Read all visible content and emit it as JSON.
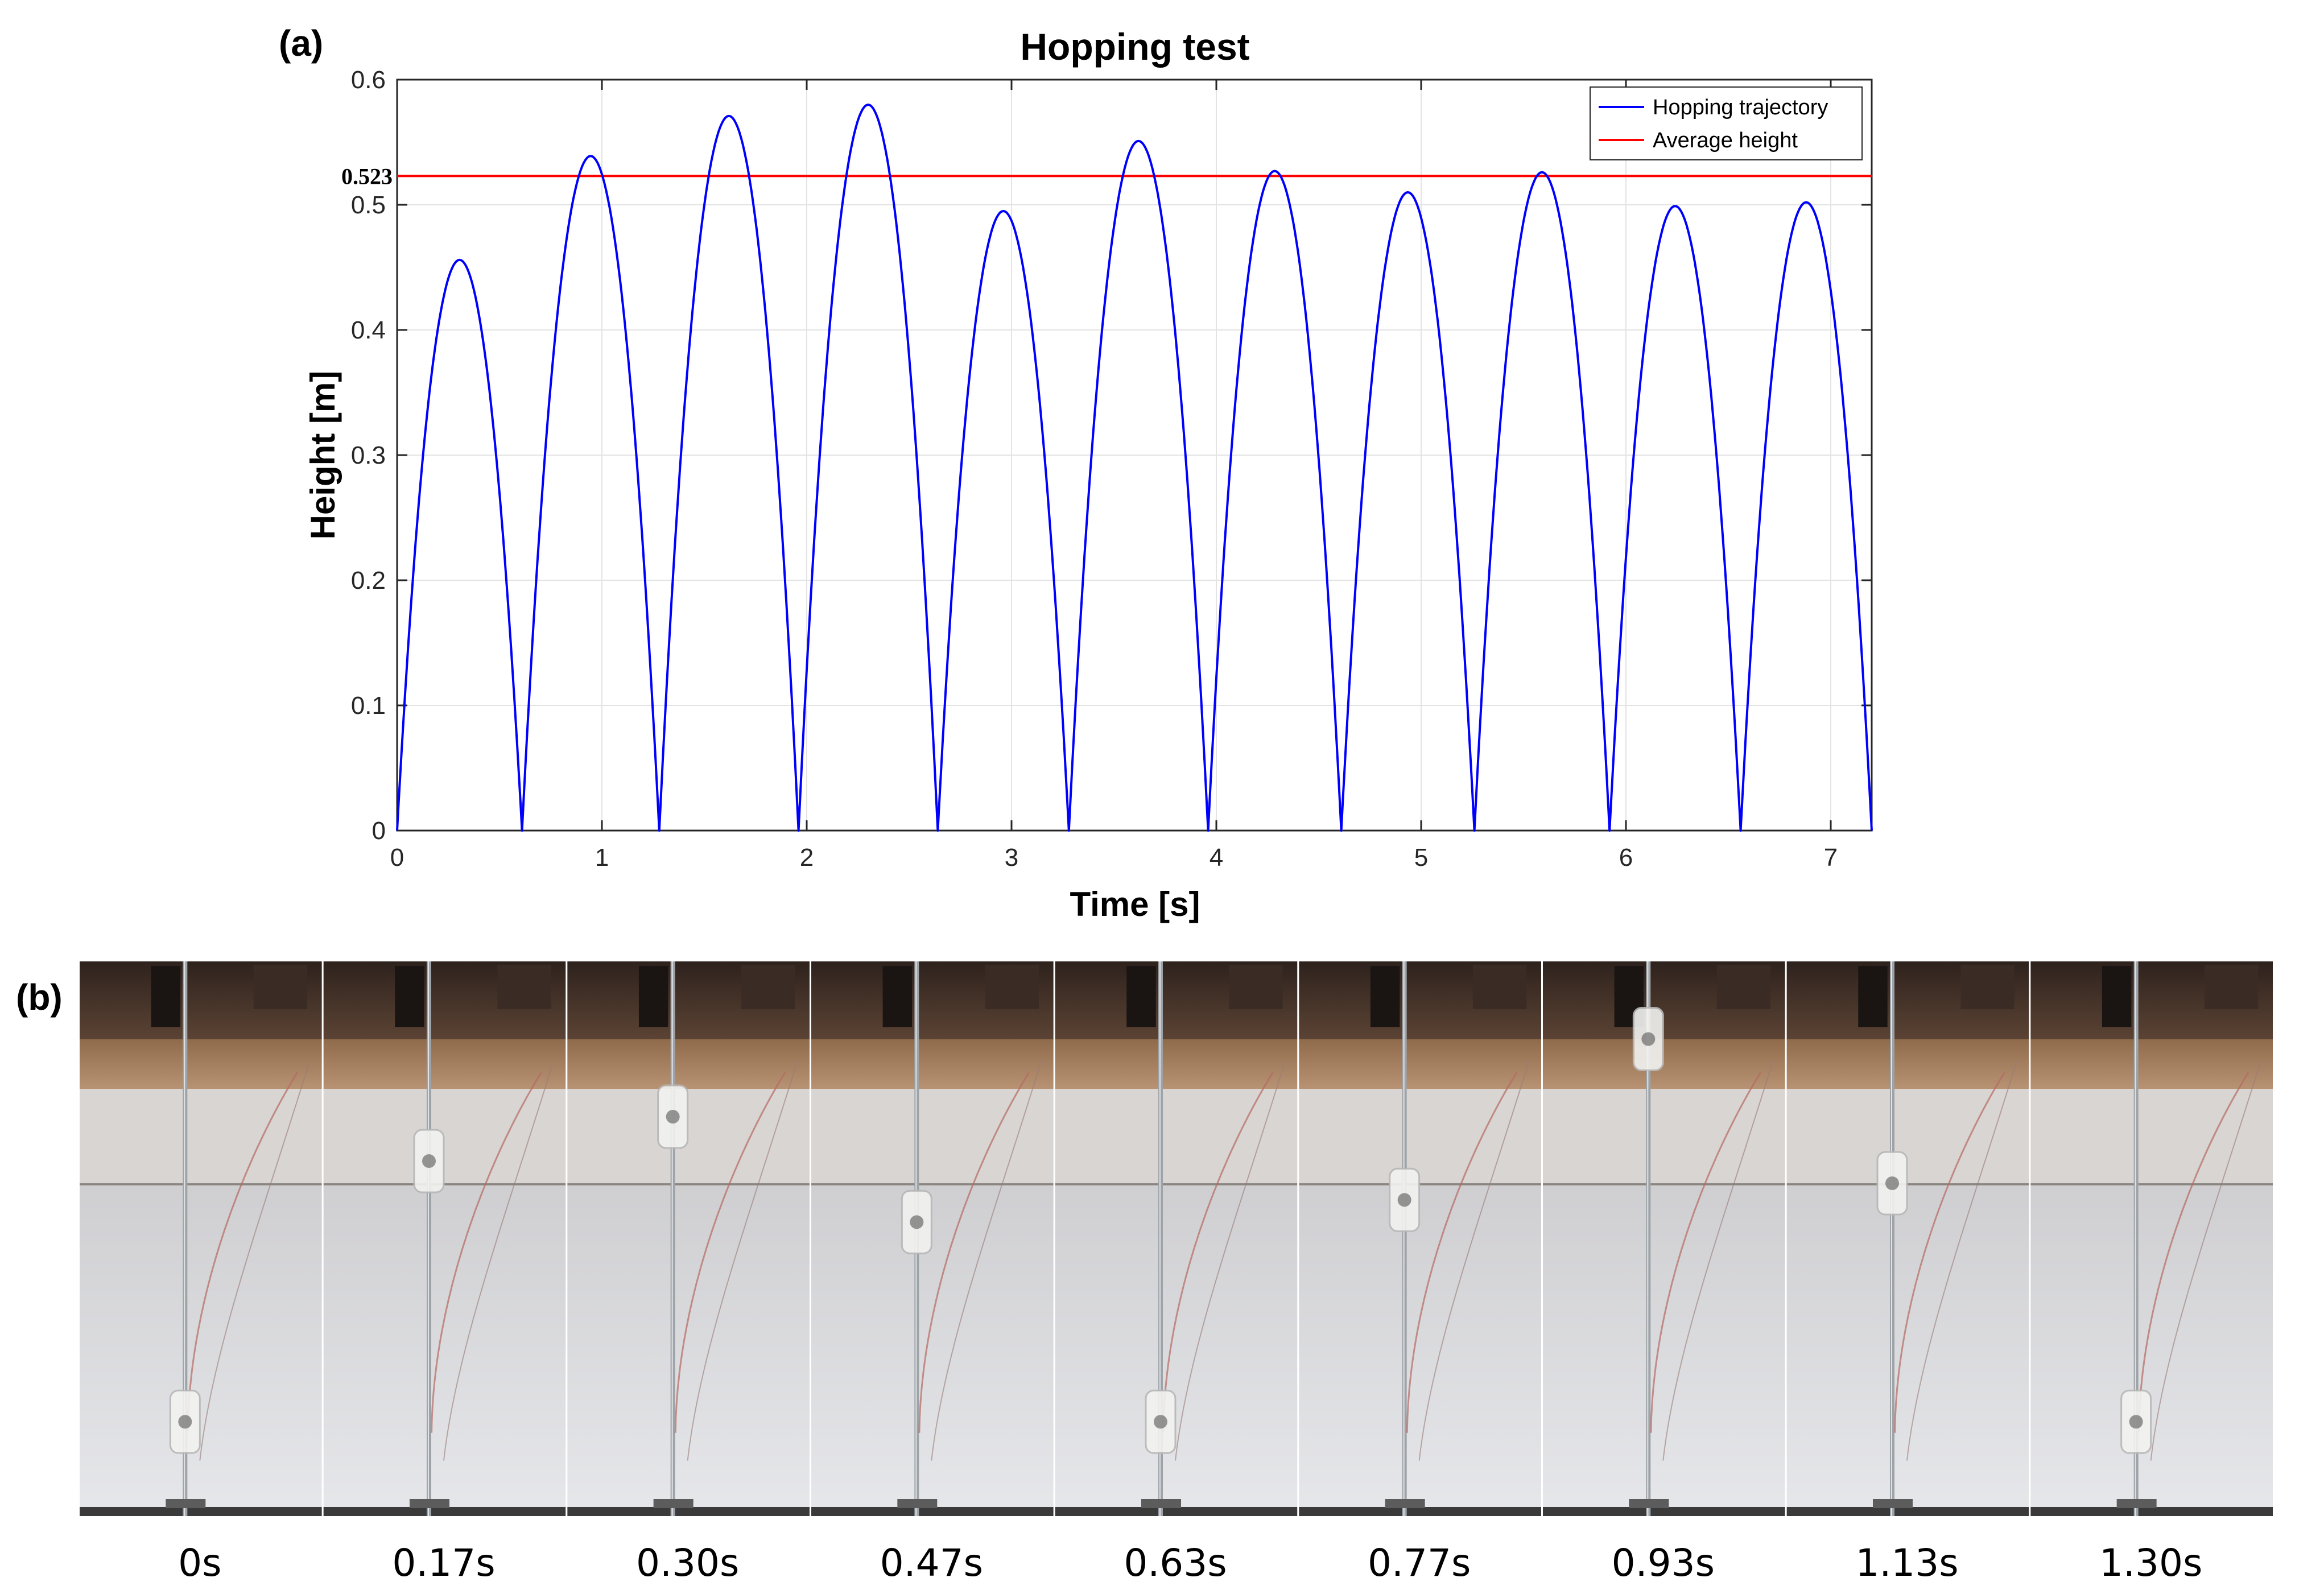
{
  "panel_a_label": "(a)",
  "panel_b_label": "(b)",
  "chart_data": {
    "type": "line",
    "title": "Hopping test",
    "xlabel": "Time [s]",
    "ylabel": "Height [m]",
    "xlim": [
      0,
      7.2
    ],
    "ylim": [
      0,
      0.6
    ],
    "xticks": [
      0,
      1,
      2,
      3,
      4,
      5,
      6,
      7
    ],
    "yticks": [
      0,
      0.1,
      0.2,
      0.3,
      0.4,
      0.5,
      0.6
    ],
    "grid": true,
    "legend_position": "top-right",
    "series": [
      {
        "name": "Hopping trajectory",
        "color": "#0000ff",
        "hops": [
          {
            "start": 0.0,
            "end": 0.61,
            "peak": 0.456
          },
          {
            "start": 0.61,
            "end": 1.28,
            "peak": 0.539
          },
          {
            "start": 1.28,
            "end": 1.96,
            "peak": 0.571
          },
          {
            "start": 1.96,
            "end": 2.64,
            "peak": 0.58
          },
          {
            "start": 2.64,
            "end": 3.28,
            "peak": 0.495
          },
          {
            "start": 3.28,
            "end": 3.96,
            "peak": 0.551
          },
          {
            "start": 3.96,
            "end": 4.61,
            "peak": 0.527
          },
          {
            "start": 4.61,
            "end": 5.26,
            "peak": 0.51
          },
          {
            "start": 5.26,
            "end": 5.92,
            "peak": 0.526
          },
          {
            "start": 5.92,
            "end": 6.56,
            "peak": 0.499
          },
          {
            "start": 6.56,
            "end": 7.2,
            "peak": 0.502
          }
        ]
      },
      {
        "name": "Average height",
        "color": "#ff0000",
        "value": 0.523
      }
    ],
    "annotation": "0.523"
  },
  "filmstrip": {
    "frames": [
      "0s",
      "0.17s",
      "0.30s",
      "0.47s",
      "0.63s",
      "0.77s",
      "0.93s",
      "1.13s",
      "1.30s"
    ]
  }
}
